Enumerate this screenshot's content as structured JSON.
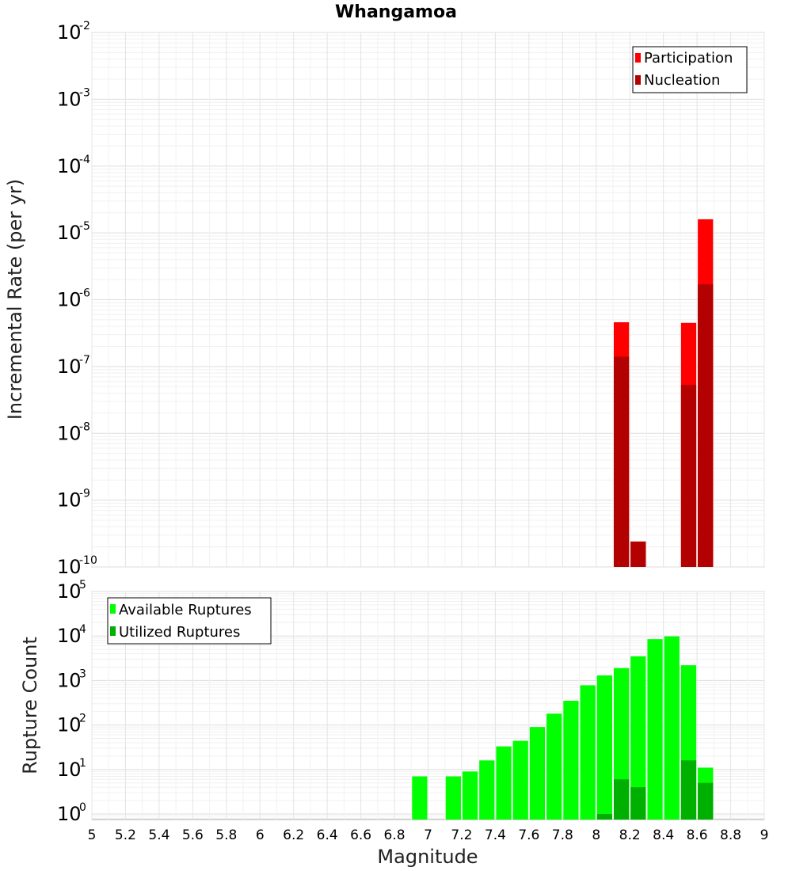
{
  "title": "Whangamoa",
  "chart_data": [
    {
      "type": "bar",
      "panel": "top",
      "ylabel": "Incremental Rate (per yr)",
      "yscale": "log",
      "ylim": [
        1e-10,
        0.01
      ],
      "xlim": [
        5,
        9
      ],
      "bin_width": 0.1,
      "legend": {
        "placement": "top-right"
      },
      "series": [
        {
          "name": "Participation",
          "color": "#ff0000",
          "x": [
            8.15,
            8.25,
            8.55,
            8.65
          ],
          "values": [
            4.6e-07,
            2.4e-10,
            4.5e-07,
            1.6e-05
          ]
        },
        {
          "name": "Nucleation",
          "color": "#b30000",
          "x": [
            8.15,
            8.25,
            8.55,
            8.65
          ],
          "values": [
            1.4e-07,
            2.4e-10,
            5.3e-08,
            1.7e-06
          ]
        }
      ],
      "y_ticks": [
        {
          "base": "10",
          "exp": "-2"
        },
        {
          "base": "10",
          "exp": "-3"
        },
        {
          "base": "10",
          "exp": "-4"
        },
        {
          "base": "10",
          "exp": "-5"
        },
        {
          "base": "10",
          "exp": "-6"
        },
        {
          "base": "10",
          "exp": "-7"
        },
        {
          "base": "10",
          "exp": "-8"
        },
        {
          "base": "10",
          "exp": "-9"
        },
        {
          "base": "10",
          "exp": "-10"
        }
      ]
    },
    {
      "type": "bar",
      "panel": "bottom",
      "ylabel": "Rupture Count",
      "xlabel": "Magnitude",
      "yscale": "log",
      "ylim": [
        0.75,
        100000.0
      ],
      "xlim": [
        5,
        9
      ],
      "bin_width": 0.1,
      "legend": {
        "placement": "top-left"
      },
      "series": [
        {
          "name": "Available Ruptures",
          "color": "#00ff00",
          "x": [
            6.95,
            7.15,
            7.25,
            7.35,
            7.45,
            7.55,
            7.65,
            7.75,
            7.85,
            7.95,
            8.05,
            8.15,
            8.25,
            8.35,
            8.45,
            8.55,
            8.65
          ],
          "values": [
            7,
            7,
            9,
            16,
            33,
            44,
            90,
            180,
            350,
            780,
            1300,
            1900,
            3500,
            8500,
            9800,
            2200,
            11
          ]
        },
        {
          "name": "Utilized Ruptures",
          "color": "#00b000",
          "x": [
            8.05,
            8.15,
            8.25,
            8.55,
            8.65
          ],
          "values": [
            1,
            6,
            4,
            16,
            5
          ]
        }
      ],
      "y_ticks": [
        {
          "base": "10",
          "exp": "5"
        },
        {
          "base": "10",
          "exp": "4"
        },
        {
          "base": "10",
          "exp": "3"
        },
        {
          "base": "10",
          "exp": "2"
        },
        {
          "base": "10",
          "exp": "1"
        },
        {
          "base": "10",
          "exp": "0"
        }
      ],
      "x_ticks": [
        "5",
        "5.2",
        "5.4",
        "5.6",
        "5.8",
        "6",
        "6.2",
        "6.4",
        "6.6",
        "6.8",
        "7",
        "7.2",
        "7.4",
        "7.6",
        "7.8",
        "8",
        "8.2",
        "8.4",
        "8.6",
        "8.8",
        "9"
      ]
    }
  ]
}
